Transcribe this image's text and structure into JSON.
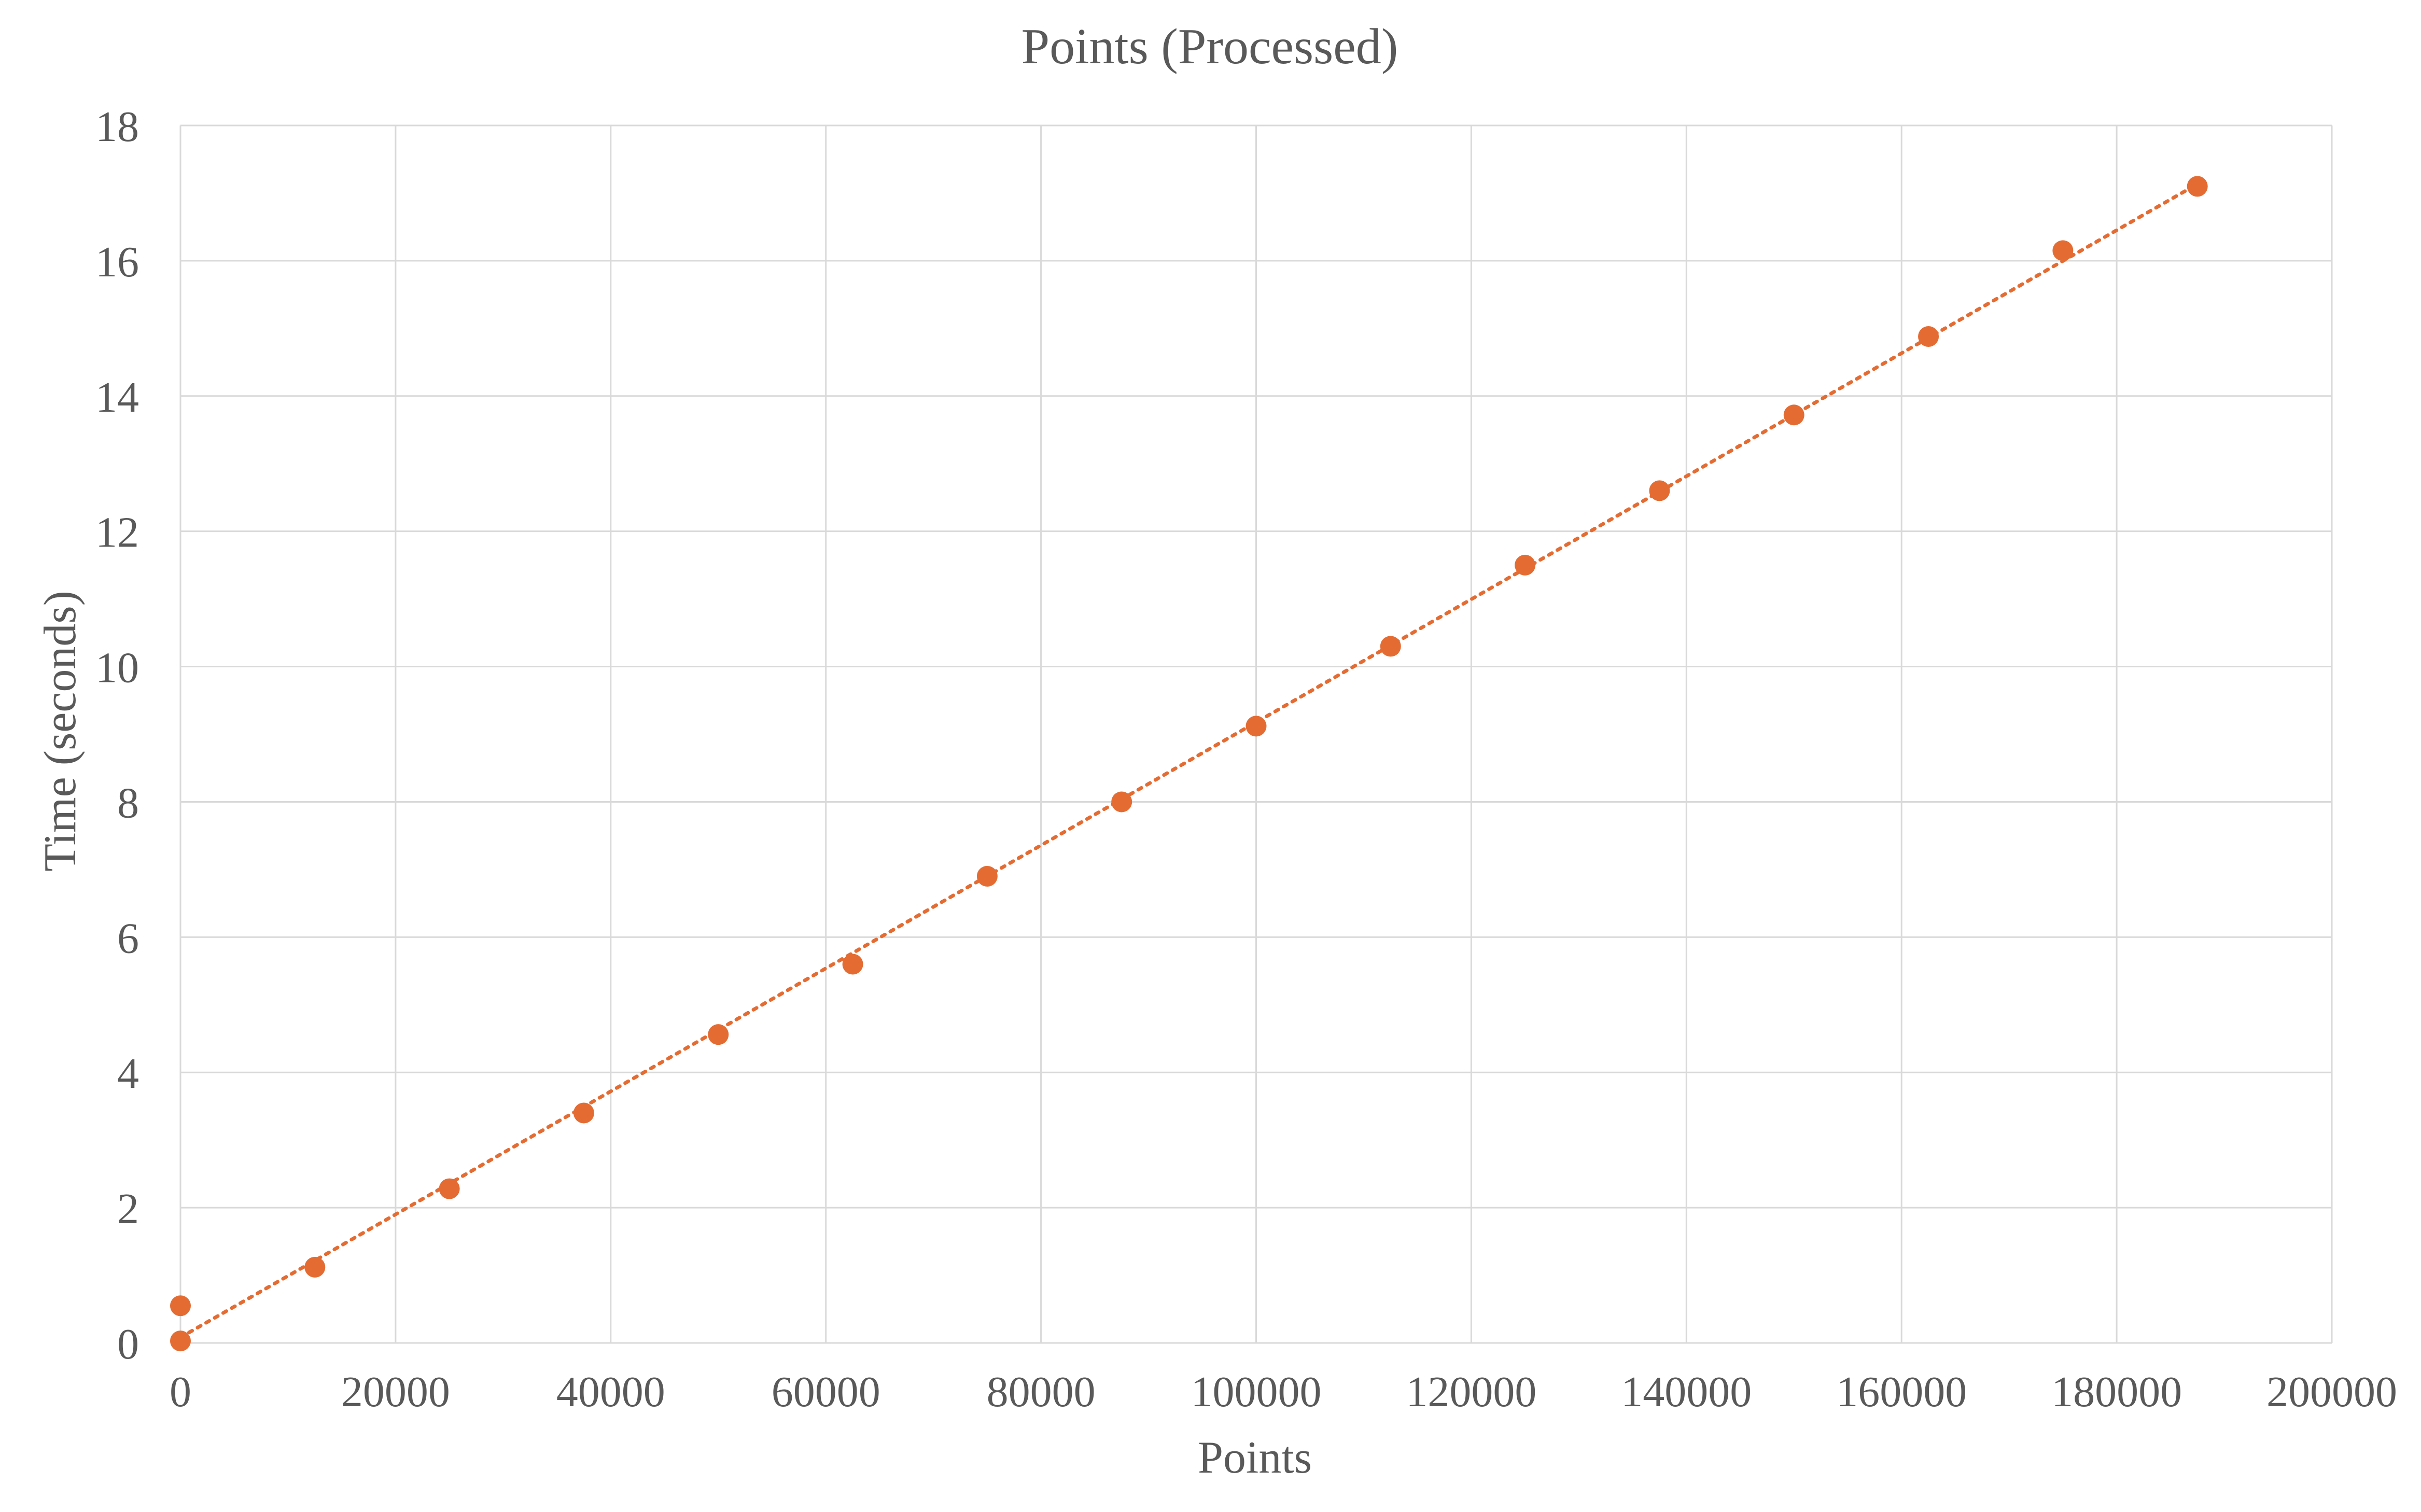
{
  "chart_data": {
    "type": "scatter",
    "title": "Points (Processed)",
    "xlabel": "Points",
    "ylabel": "Time (seconds)",
    "xlim": [
      0,
      200000
    ],
    "ylim": [
      0,
      18
    ],
    "x_ticks": [
      0,
      20000,
      40000,
      60000,
      80000,
      100000,
      120000,
      140000,
      160000,
      180000,
      200000
    ],
    "y_ticks": [
      0,
      2,
      4,
      6,
      8,
      10,
      12,
      14,
      16,
      18
    ],
    "grid": true,
    "legend": "none",
    "series": [
      {
        "x": [
          0,
          0,
          12500,
          25000,
          37500,
          50000,
          62500,
          75000,
          87500,
          100000,
          112500,
          125000,
          137500,
          150000,
          162500,
          175000,
          187500
        ],
        "y": [
          0.55,
          0.03,
          1.12,
          2.28,
          3.4,
          4.56,
          5.6,
          6.9,
          8.0,
          9.12,
          10.3,
          11.5,
          12.6,
          13.72,
          14.88,
          16.15,
          17.1
        ],
        "marker": "circle",
        "trendline": {
          "type": "linear",
          "style": "dotted"
        }
      }
    ],
    "colors": {
      "series": "#E46C33",
      "grid": "#D9D9D9",
      "text": "#595959"
    }
  }
}
